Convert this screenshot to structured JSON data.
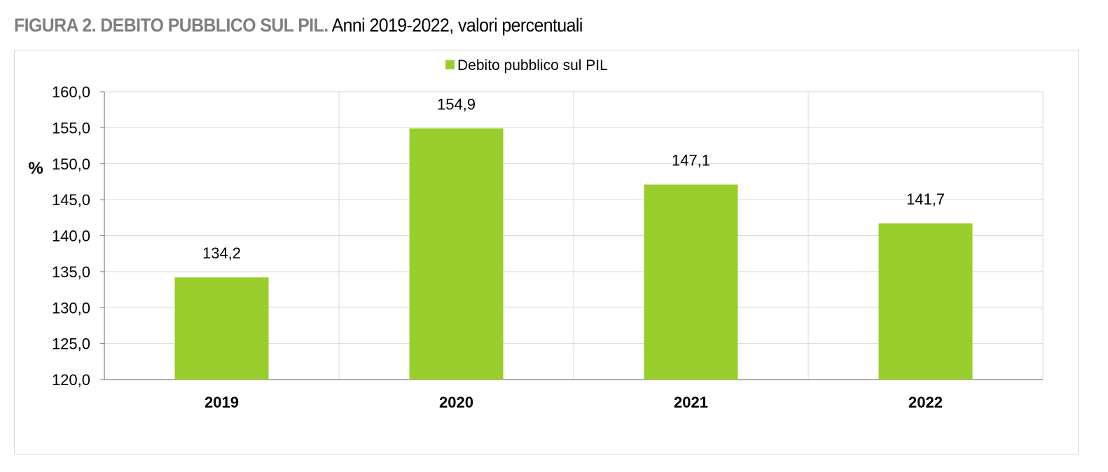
{
  "figure": {
    "title_lead": "FIGURA 2. DEBITO PUBBLICO SUL PIL.",
    "title_rest": " Anni 2019-2022, valori percentuali"
  },
  "chart_data": {
    "type": "bar",
    "categories": [
      "2019",
      "2020",
      "2021",
      "2022"
    ],
    "series": [
      {
        "name": "Debito pubblico sul PIL",
        "values": [
          134.2,
          154.9,
          147.1,
          141.7
        ],
        "color": "#9acd2e"
      }
    ],
    "value_labels": [
      "134,2",
      "154,9",
      "147,1",
      "141,7"
    ],
    "ylabel": "%",
    "ylim": [
      120,
      160
    ],
    "yticks": [
      120,
      125,
      130,
      135,
      140,
      145,
      150,
      155,
      160
    ],
    "ytick_labels": [
      "120,0",
      "125,0",
      "130,0",
      "135,0",
      "140,0",
      "145,0",
      "150,0",
      "155,0",
      "160,0"
    ],
    "grid": true,
    "legend": "top-center"
  }
}
